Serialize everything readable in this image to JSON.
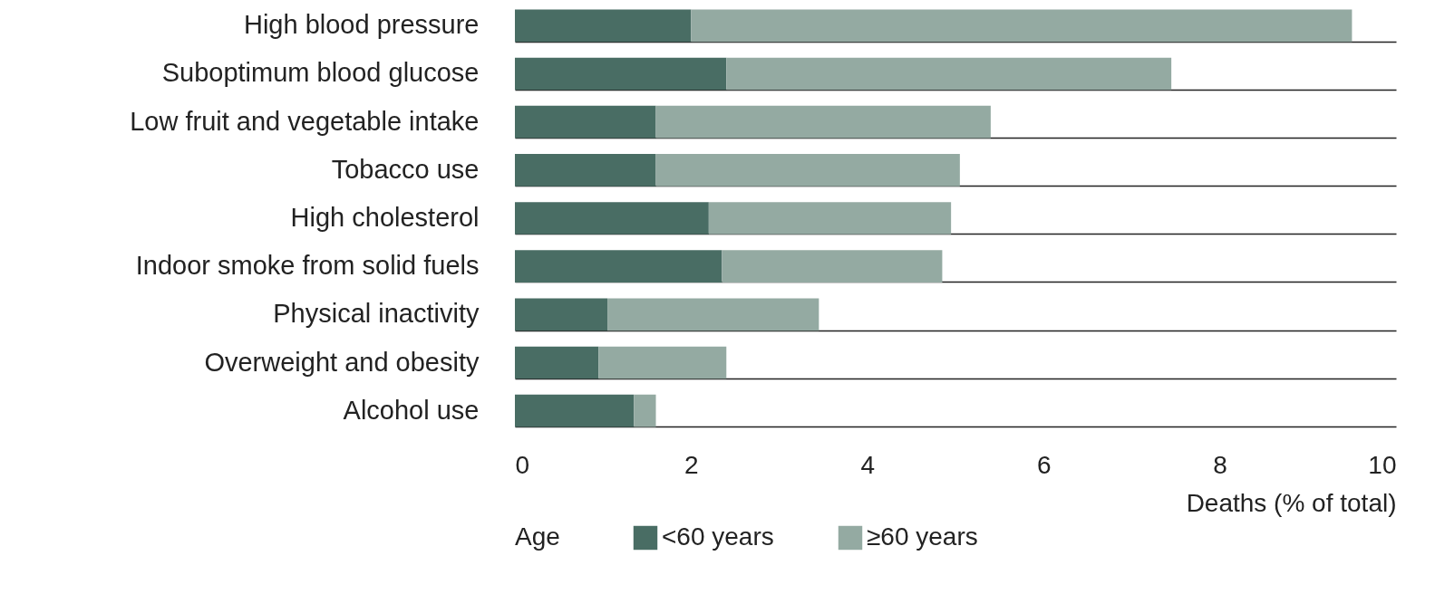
{
  "chart_data": {
    "type": "bar",
    "orientation": "horizontal",
    "stacked": true,
    "xlabel": "Deaths (% of total)",
    "legend_title": "Age",
    "legend": "bottom",
    "grid": "y",
    "categories": [
      "High blood pressure",
      "Suboptimum blood glucose",
      "Low fruit and vegetable intake",
      "Tobacco use",
      "High cholesterol",
      "Indoor smoke from solid fuels",
      "Physical inactivity",
      "Overweight and obesity",
      "Alcohol use"
    ],
    "series": [
      {
        "name": "<60 years",
        "color": "#496d64",
        "values": [
          2.0,
          2.4,
          1.6,
          1.6,
          2.2,
          2.35,
          1.05,
          0.95,
          1.35
        ]
      },
      {
        "name": "≥60 years",
        "color": "#94aaa2",
        "values": [
          7.5,
          5.05,
          3.8,
          3.45,
          2.75,
          2.5,
          2.4,
          1.45,
          0.25
        ]
      }
    ],
    "xlim": [
      0,
      10
    ],
    "xticks": [
      0,
      2,
      4,
      6,
      8,
      10
    ]
  }
}
